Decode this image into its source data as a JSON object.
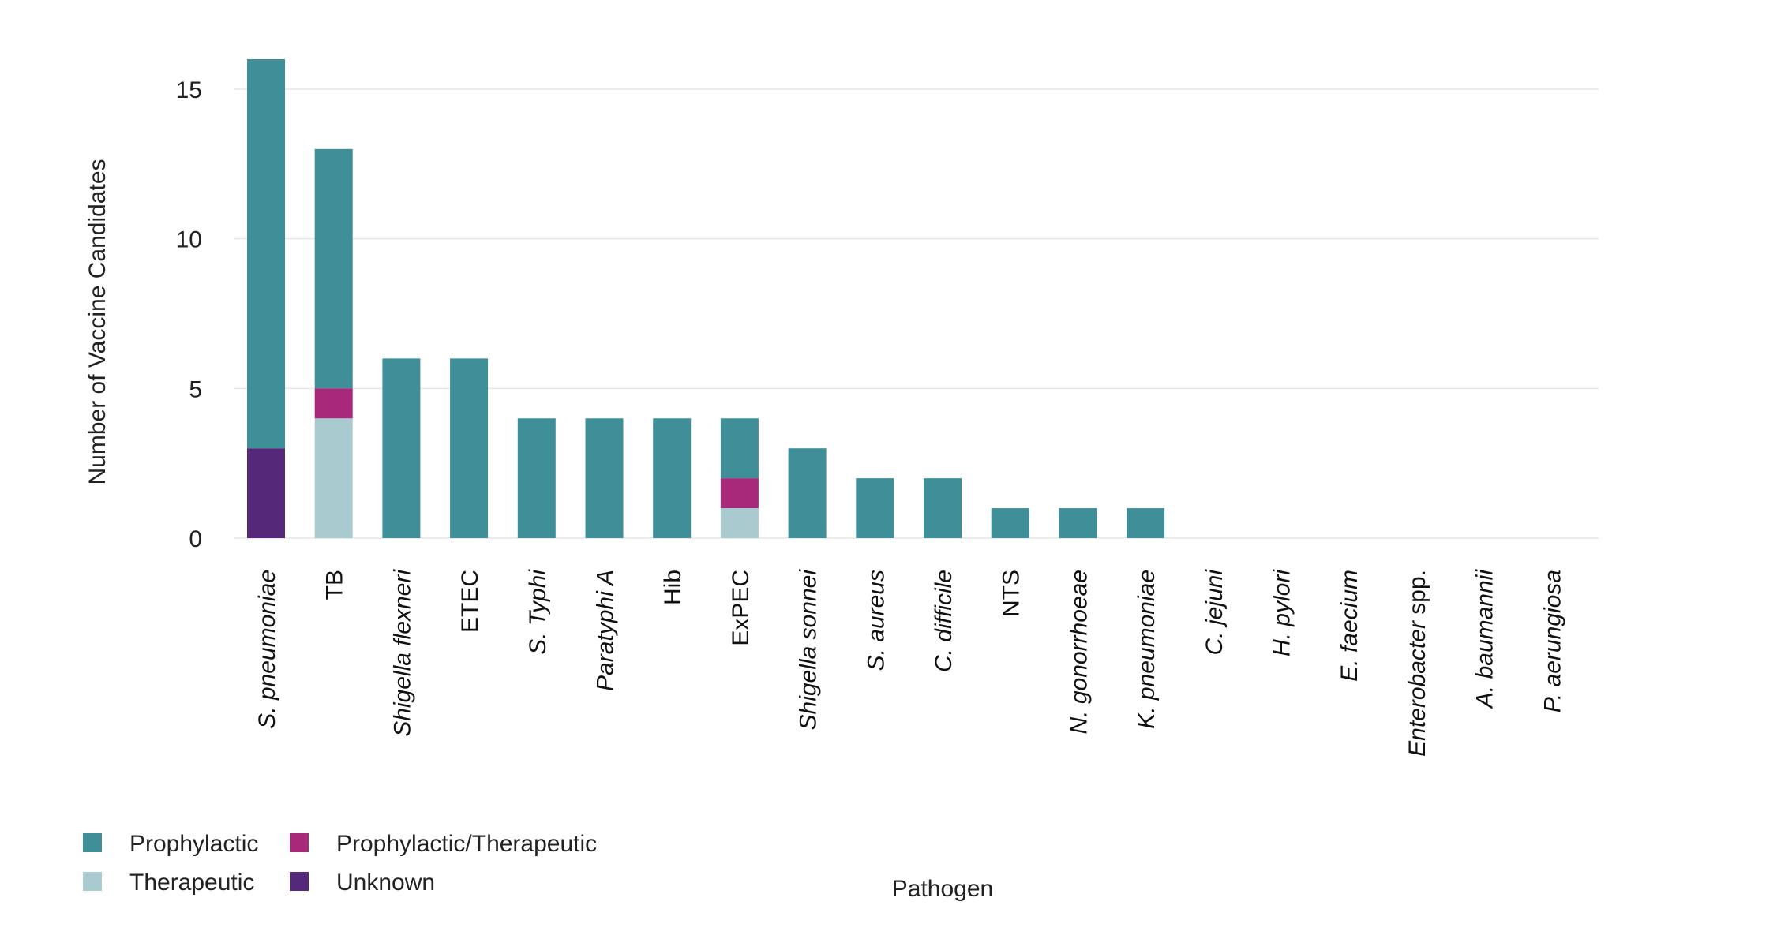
{
  "chart_data": {
    "type": "bar",
    "stacked": true,
    "title": "",
    "xlabel": "Pathogen",
    "ylabel": "Number of Vaccine Candidates",
    "ylim": [
      0,
      16
    ],
    "yticks": [
      0,
      5,
      10,
      15
    ],
    "grid": true,
    "legend_position": "bottom-left",
    "categories": [
      {
        "label": "S. pneumoniae",
        "italic": true,
        "italic_part": "S. pneumoniae",
        "rest": ""
      },
      {
        "label": "TB",
        "italic": false,
        "italic_part": "",
        "rest": "TB"
      },
      {
        "label": "Shigella flexneri",
        "italic": true,
        "italic_part": "Shigella flexneri",
        "rest": ""
      },
      {
        "label": "ETEC",
        "italic": false,
        "italic_part": "",
        "rest": "ETEC"
      },
      {
        "label": "S. Typhi",
        "italic": true,
        "italic_part": "S. Typhi",
        "rest": ""
      },
      {
        "label": "Paratyphi A",
        "italic": true,
        "italic_part": "Paratyphi A",
        "rest": ""
      },
      {
        "label": "Hib",
        "italic": false,
        "italic_part": "",
        "rest": "Hib"
      },
      {
        "label": "ExPEC",
        "italic": false,
        "italic_part": "",
        "rest": "ExPEC"
      },
      {
        "label": "Shigella sonnei",
        "italic": true,
        "italic_part": "Shigella sonnei",
        "rest": ""
      },
      {
        "label": "S. aureus",
        "italic": true,
        "italic_part": "S. aureus",
        "rest": ""
      },
      {
        "label": "C. difficile",
        "italic": true,
        "italic_part": "C. difficile",
        "rest": ""
      },
      {
        "label": "NTS",
        "italic": false,
        "italic_part": "",
        "rest": "NTS"
      },
      {
        "label": "N. gonorrhoeae",
        "italic": true,
        "italic_part": "N. gonorrhoeae",
        "rest": ""
      },
      {
        "label": "K. pneumoniae",
        "italic": true,
        "italic_part": "K. pneumoniae",
        "rest": ""
      },
      {
        "label": "C. jejuni",
        "italic": true,
        "italic_part": "C. jejuni",
        "rest": ""
      },
      {
        "label": "H. pylori",
        "italic": true,
        "italic_part": "H. pylori",
        "rest": ""
      },
      {
        "label": "E. faecium",
        "italic": true,
        "italic_part": "E. faecium",
        "rest": ""
      },
      {
        "label": "Enterobacter spp.",
        "italic": true,
        "italic_part": "Enterobacter",
        "rest": " spp."
      },
      {
        "label": "A. baumannii",
        "italic": true,
        "italic_part": "A. baumannii",
        "rest": ""
      },
      {
        "label": "P. aerungiosa",
        "italic": true,
        "italic_part": "P. aerungiosa",
        "rest": ""
      }
    ],
    "series": [
      {
        "name": "Unknown",
        "color": "#55287a",
        "values": [
          3,
          0,
          0,
          0,
          0,
          0,
          0,
          0,
          0,
          0,
          0,
          0,
          0,
          0,
          0,
          0,
          0,
          0,
          0,
          0
        ]
      },
      {
        "name": "Therapeutic",
        "color": "#a9cbd0",
        "values": [
          0,
          4,
          0,
          0,
          0,
          0,
          0,
          1,
          0,
          0,
          0,
          0,
          0,
          0,
          0,
          0,
          0,
          0,
          0,
          0
        ]
      },
      {
        "name": "Prophylactic/Therapeutic",
        "color": "#a8287a",
        "values": [
          0,
          1,
          0,
          0,
          0,
          0,
          0,
          1,
          0,
          0,
          0,
          0,
          0,
          0,
          0,
          0,
          0,
          0,
          0,
          0
        ]
      },
      {
        "name": "Prophylactic",
        "color": "#3f8f98",
        "values": [
          13,
          8,
          6,
          6,
          4,
          4,
          4,
          2,
          3,
          2,
          2,
          1,
          1,
          1,
          0,
          0,
          0,
          0,
          0,
          0
        ]
      }
    ],
    "legend_order": [
      "Prophylactic",
      "Prophylactic/Therapeutic",
      "Therapeutic",
      "Unknown"
    ]
  }
}
